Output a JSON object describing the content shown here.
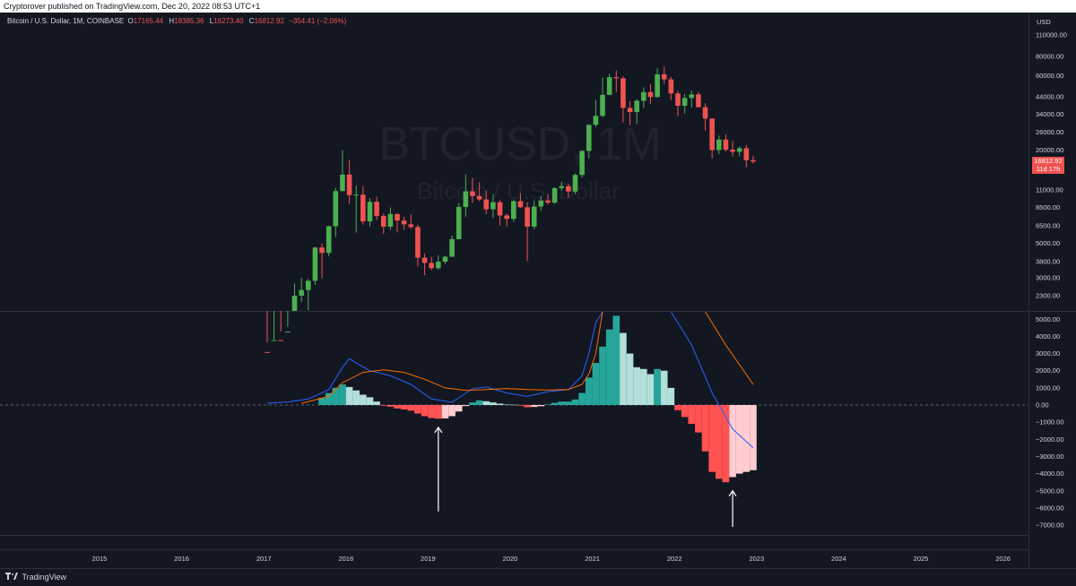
{
  "header": {
    "published": "Cryptorover published on TradingView.com, Dec 20, 2022 08:53 UTC+1"
  },
  "symbol": {
    "name": "Bitcoin / U.S. Dollar, 1M, COINBASE",
    "o_label": "O",
    "o_value": "17165.44",
    "h_label": "H",
    "h_value": "18385.36",
    "l_label": "L",
    "l_value": "16273.40",
    "c_label": "C",
    "c_value": "16812.92",
    "change": "−354.41 (−2.06%)"
  },
  "watermark": {
    "ticker": "BTCUSD, 1M",
    "description": "Bitcoin / U.S. Dollar"
  },
  "price_axis": {
    "currency": "USD",
    "labels": [
      "110000.00",
      "80000.00",
      "60000.00",
      "44000.00",
      "34000.00",
      "26000.00",
      "20000.00",
      "11000.00",
      "8500.00",
      "6500.00",
      "5000.00",
      "3800.00",
      "3000.00",
      "2300.00"
    ],
    "last_price": "16812.92",
    "countdown": "11d 17h"
  },
  "indicator_axis": {
    "labels": [
      "5000.00",
      "4000.00",
      "3000.00",
      "2000.00",
      "1000.00",
      "0.00",
      "−1000.00",
      "−2000.00",
      "−3000.00",
      "−4000.00",
      "−5000.00",
      "−6000.00",
      "−7000.00"
    ]
  },
  "time_axis": {
    "labels": [
      "2015",
      "2016",
      "2017",
      "2018",
      "2019",
      "2020",
      "2021",
      "2022",
      "2023",
      "2024",
      "2025",
      "2026"
    ]
  },
  "footer": {
    "brand": "TradingView"
  },
  "colors": {
    "background": "#131722",
    "up": "#26a69a",
    "down": "#ef5350",
    "up_candle": "#4caf50",
    "hist_up_strong": "#26a69a",
    "hist_up_weak": "#b2dfdb",
    "hist_down_strong": "#ff5252",
    "hist_down_weak": "#ffcdd2",
    "macd_line": "#2962ff",
    "signal_line": "#ff6d00"
  },
  "chart_data": [
    {
      "type": "candlestick",
      "timeframe": "1M",
      "yscale": "log",
      "candles": [
        {
          "t": "2017-01",
          "o": 998,
          "h": 1150,
          "l": 750,
          "c": 970
        },
        {
          "t": "2017-02",
          "o": 970,
          "h": 1200,
          "l": 920,
          "c": 1190
        },
        {
          "t": "2017-03",
          "o": 1190,
          "h": 1350,
          "l": 890,
          "c": 1080
        },
        {
          "t": "2017-04",
          "o": 1080,
          "h": 1450,
          "l": 1080,
          "c": 1350
        },
        {
          "t": "2017-05",
          "o": 1350,
          "h": 2760,
          "l": 1350,
          "c": 2300
        },
        {
          "t": "2017-06",
          "o": 2300,
          "h": 3000,
          "l": 2100,
          "c": 2500
        },
        {
          "t": "2017-07",
          "o": 2500,
          "h": 2950,
          "l": 1850,
          "c": 2870
        },
        {
          "t": "2017-08",
          "o": 2870,
          "h": 4750,
          "l": 2700,
          "c": 4700
        },
        {
          "t": "2017-09",
          "o": 4700,
          "h": 4980,
          "l": 2970,
          "c": 4340
        },
        {
          "t": "2017-10",
          "o": 4340,
          "h": 6470,
          "l": 4120,
          "c": 6450
        },
        {
          "t": "2017-11",
          "o": 6450,
          "h": 11400,
          "l": 5500,
          "c": 10850
        },
        {
          "t": "2017-12",
          "o": 10850,
          "h": 19890,
          "l": 10800,
          "c": 13860
        },
        {
          "t": "2018-01",
          "o": 13860,
          "h": 17250,
          "l": 9000,
          "c": 10230
        },
        {
          "t": "2018-02",
          "o": 10230,
          "h": 11790,
          "l": 5870,
          "c": 10300
        },
        {
          "t": "2018-03",
          "o": 10300,
          "h": 11700,
          "l": 6600,
          "c": 6930
        },
        {
          "t": "2018-04",
          "o": 6930,
          "h": 9770,
          "l": 6430,
          "c": 9250
        },
        {
          "t": "2018-05",
          "o": 9250,
          "h": 9990,
          "l": 7040,
          "c": 7500
        },
        {
          "t": "2018-06",
          "o": 7500,
          "h": 7780,
          "l": 5760,
          "c": 6400
        },
        {
          "t": "2018-07",
          "o": 6400,
          "h": 8500,
          "l": 6100,
          "c": 7730
        },
        {
          "t": "2018-08",
          "o": 7730,
          "h": 7760,
          "l": 5880,
          "c": 7010
        },
        {
          "t": "2018-09",
          "o": 7010,
          "h": 7420,
          "l": 6100,
          "c": 6630
        },
        {
          "t": "2018-10",
          "o": 6630,
          "h": 7680,
          "l": 6200,
          "c": 6370
        },
        {
          "t": "2018-11",
          "o": 6370,
          "h": 6600,
          "l": 3550,
          "c": 4040
        },
        {
          "t": "2018-12",
          "o": 4040,
          "h": 4300,
          "l": 3120,
          "c": 3740
        },
        {
          "t": "2019-01",
          "o": 3740,
          "h": 4100,
          "l": 3350,
          "c": 3460
        },
        {
          "t": "2019-02",
          "o": 3460,
          "h": 4200,
          "l": 3390,
          "c": 3810
        },
        {
          "t": "2019-03",
          "o": 3810,
          "h": 4150,
          "l": 3680,
          "c": 4100
        },
        {
          "t": "2019-04",
          "o": 4100,
          "h": 5600,
          "l": 4100,
          "c": 5320
        },
        {
          "t": "2019-05",
          "o": 5320,
          "h": 9080,
          "l": 5300,
          "c": 8570
        },
        {
          "t": "2019-06",
          "o": 8570,
          "h": 13880,
          "l": 7440,
          "c": 10820
        },
        {
          "t": "2019-07",
          "o": 10820,
          "h": 13200,
          "l": 9100,
          "c": 10090
        },
        {
          "t": "2019-08",
          "o": 10090,
          "h": 12340,
          "l": 9350,
          "c": 9590
        },
        {
          "t": "2019-09",
          "o": 9590,
          "h": 10950,
          "l": 7700,
          "c": 8290
        },
        {
          "t": "2019-10",
          "o": 8290,
          "h": 10370,
          "l": 7300,
          "c": 9200
        },
        {
          "t": "2019-11",
          "o": 9200,
          "h": 9500,
          "l": 6520,
          "c": 7560
        },
        {
          "t": "2019-12",
          "o": 7560,
          "h": 7750,
          "l": 6430,
          "c": 7190
        },
        {
          "t": "2020-01",
          "o": 7190,
          "h": 9560,
          "l": 6860,
          "c": 9350
        },
        {
          "t": "2020-02",
          "o": 9350,
          "h": 10500,
          "l": 8450,
          "c": 8540
        },
        {
          "t": "2020-03",
          "o": 8540,
          "h": 9190,
          "l": 3850,
          "c": 6410
        },
        {
          "t": "2020-04",
          "o": 6410,
          "h": 9460,
          "l": 6150,
          "c": 8630
        },
        {
          "t": "2020-05",
          "o": 8630,
          "h": 10070,
          "l": 8100,
          "c": 9450
        },
        {
          "t": "2020-06",
          "o": 9450,
          "h": 10400,
          "l": 8900,
          "c": 9140
        },
        {
          "t": "2020-07",
          "o": 9140,
          "h": 11450,
          "l": 8980,
          "c": 11350
        },
        {
          "t": "2020-08",
          "o": 11350,
          "h": 12480,
          "l": 10950,
          "c": 11660
        },
        {
          "t": "2020-09",
          "o": 11660,
          "h": 12100,
          "l": 9850,
          "c": 10780
        },
        {
          "t": "2020-10",
          "o": 10780,
          "h": 14100,
          "l": 10400,
          "c": 13800
        },
        {
          "t": "2020-11",
          "o": 13800,
          "h": 19900,
          "l": 13200,
          "c": 19700
        },
        {
          "t": "2020-12",
          "o": 19700,
          "h": 29300,
          "l": 17600,
          "c": 28990
        },
        {
          "t": "2021-01",
          "o": 28990,
          "h": 41950,
          "l": 28130,
          "c": 33140
        },
        {
          "t": "2021-02",
          "o": 33140,
          "h": 58350,
          "l": 32300,
          "c": 45240
        },
        {
          "t": "2021-03",
          "o": 45240,
          "h": 61790,
          "l": 45000,
          "c": 58800
        },
        {
          "t": "2021-04",
          "o": 58800,
          "h": 64850,
          "l": 47000,
          "c": 57800
        },
        {
          "t": "2021-05",
          "o": 57800,
          "h": 59600,
          "l": 30000,
          "c": 37300
        },
        {
          "t": "2021-06",
          "o": 37300,
          "h": 41300,
          "l": 28800,
          "c": 35040
        },
        {
          "t": "2021-07",
          "o": 35040,
          "h": 42400,
          "l": 29300,
          "c": 41460
        },
        {
          "t": "2021-08",
          "o": 41460,
          "h": 50500,
          "l": 37300,
          "c": 47100
        },
        {
          "t": "2021-09",
          "o": 47100,
          "h": 52900,
          "l": 39600,
          "c": 43800
        },
        {
          "t": "2021-10",
          "o": 43800,
          "h": 67000,
          "l": 43300,
          "c": 61300
        },
        {
          "t": "2021-11",
          "o": 61300,
          "h": 69000,
          "l": 53300,
          "c": 56950
        },
        {
          "t": "2021-12",
          "o": 56950,
          "h": 59100,
          "l": 42000,
          "c": 46200
        },
        {
          "t": "2022-01",
          "o": 46200,
          "h": 47900,
          "l": 33000,
          "c": 38480
        },
        {
          "t": "2022-02",
          "o": 38480,
          "h": 45800,
          "l": 34300,
          "c": 43180
        },
        {
          "t": "2022-03",
          "o": 43180,
          "h": 48200,
          "l": 37500,
          "c": 45530
        },
        {
          "t": "2022-04",
          "o": 45530,
          "h": 47400,
          "l": 37700,
          "c": 37650
        },
        {
          "t": "2022-05",
          "o": 37650,
          "h": 40000,
          "l": 26700,
          "c": 31800
        },
        {
          "t": "2022-06",
          "o": 31800,
          "h": 31900,
          "l": 17600,
          "c": 19940
        },
        {
          "t": "2022-07",
          "o": 19940,
          "h": 24700,
          "l": 18800,
          "c": 23300
        },
        {
          "t": "2022-08",
          "o": 23300,
          "h": 25200,
          "l": 19520,
          "c": 20050
        },
        {
          "t": "2022-09",
          "o": 20050,
          "h": 22800,
          "l": 18150,
          "c": 19430
        },
        {
          "t": "2022-10",
          "o": 19430,
          "h": 21100,
          "l": 18200,
          "c": 20490
        },
        {
          "t": "2022-11",
          "o": 20490,
          "h": 21470,
          "l": 15480,
          "c": 17165
        },
        {
          "t": "2022-12",
          "o": 17165.44,
          "h": 18385.36,
          "l": 16273.4,
          "c": 16812.92
        }
      ]
    },
    {
      "type": "macd",
      "ylim": [
        -7000,
        5000
      ],
      "histogram": [
        {
          "t": "2017-09",
          "v": 420
        },
        {
          "t": "2017-10",
          "v": 700
        },
        {
          "t": "2017-11",
          "v": 1000
        },
        {
          "t": "2017-12",
          "v": 1200
        },
        {
          "t": "2018-01",
          "v": 1050
        },
        {
          "t": "2018-02",
          "v": 850
        },
        {
          "t": "2018-03",
          "v": 600
        },
        {
          "t": "2018-04",
          "v": 450
        },
        {
          "t": "2018-05",
          "v": 200
        },
        {
          "t": "2018-06",
          "v": -40
        },
        {
          "t": "2018-07",
          "v": -100
        },
        {
          "t": "2018-08",
          "v": -200
        },
        {
          "t": "2018-09",
          "v": -260
        },
        {
          "t": "2018-10",
          "v": -330
        },
        {
          "t": "2018-11",
          "v": -500
        },
        {
          "t": "2018-12",
          "v": -650
        },
        {
          "t": "2019-01",
          "v": -760
        },
        {
          "t": "2019-02",
          "v": -800
        },
        {
          "t": "2019-03",
          "v": -780
        },
        {
          "t": "2019-04",
          "v": -650
        },
        {
          "t": "2019-05",
          "v": -380
        },
        {
          "t": "2019-06",
          "v": -60
        },
        {
          "t": "2019-07",
          "v": 150
        },
        {
          "t": "2019-08",
          "v": 270
        },
        {
          "t": "2019-09",
          "v": 220
        },
        {
          "t": "2019-10",
          "v": 150
        },
        {
          "t": "2019-11",
          "v": 80
        },
        {
          "t": "2019-12",
          "v": 30
        },
        {
          "t": "2020-01",
          "v": 20
        },
        {
          "t": "2020-02",
          "v": -40
        },
        {
          "t": "2020-03",
          "v": -130
        },
        {
          "t": "2020-04",
          "v": -110
        },
        {
          "t": "2020-05",
          "v": -70
        },
        {
          "t": "2020-06",
          "v": 30
        },
        {
          "t": "2020-07",
          "v": 130
        },
        {
          "t": "2020-08",
          "v": 200
        },
        {
          "t": "2020-09",
          "v": 200
        },
        {
          "t": "2020-10",
          "v": 320
        },
        {
          "t": "2020-11",
          "v": 700
        },
        {
          "t": "2020-12",
          "v": 1600
        },
        {
          "t": "2021-01",
          "v": 2450
        },
        {
          "t": "2021-02",
          "v": 3400
        },
        {
          "t": "2021-03",
          "v": 4400
        },
        {
          "t": "2021-04",
          "v": 5200
        },
        {
          "t": "2021-05",
          "v": 4200
        },
        {
          "t": "2021-06",
          "v": 3000
        },
        {
          "t": "2021-07",
          "v": 2200
        },
        {
          "t": "2021-08",
          "v": 2100
        },
        {
          "t": "2021-09",
          "v": 1800
        },
        {
          "t": "2021-10",
          "v": 2100
        },
        {
          "t": "2021-11",
          "v": 2000
        },
        {
          "t": "2021-12",
          "v": 1000
        },
        {
          "t": "2022-01",
          "v": -300
        },
        {
          "t": "2022-02",
          "v": -700
        },
        {
          "t": "2022-03",
          "v": -1100
        },
        {
          "t": "2022-04",
          "v": -1600
        },
        {
          "t": "2022-05",
          "v": -2700
        },
        {
          "t": "2022-06",
          "v": -3900
        },
        {
          "t": "2022-07",
          "v": -4300
        },
        {
          "t": "2022-08",
          "v": -4500
        },
        {
          "t": "2022-09",
          "v": -4200
        },
        {
          "t": "2022-10",
          "v": -4000
        },
        {
          "t": "2022-11",
          "v": -3900
        },
        {
          "t": "2022-12",
          "v": -3800
        }
      ],
      "macd_line": [
        {
          "t": "2017-01",
          "v": 100
        },
        {
          "t": "2017-04",
          "v": 180
        },
        {
          "t": "2017-07",
          "v": 350
        },
        {
          "t": "2017-10",
          "v": 900
        },
        {
          "t": "2017-12",
          "v": 2200
        },
        {
          "t": "2018-01",
          "v": 2700
        },
        {
          "t": "2018-02",
          "v": 2450
        },
        {
          "t": "2018-04",
          "v": 2000
        },
        {
          "t": "2018-07",
          "v": 1700
        },
        {
          "t": "2018-10",
          "v": 1200
        },
        {
          "t": "2019-01",
          "v": 350
        },
        {
          "t": "2019-04",
          "v": 160
        },
        {
          "t": "2019-07",
          "v": 950
        },
        {
          "t": "2019-09",
          "v": 1050
        },
        {
          "t": "2019-12",
          "v": 700
        },
        {
          "t": "2020-03",
          "v": 500
        },
        {
          "t": "2020-06",
          "v": 780
        },
        {
          "t": "2020-09",
          "v": 900
        },
        {
          "t": "2020-11",
          "v": 1700
        },
        {
          "t": "2020-12",
          "v": 3000
        },
        {
          "t": "2021-01",
          "v": 4800
        },
        {
          "t": "2021-02",
          "v": 6200
        }
      ],
      "macd_line_2022": [
        {
          "t": "2021-12",
          "v": 6000
        },
        {
          "t": "2022-03",
          "v": 3500
        },
        {
          "t": "2022-06",
          "v": 700
        },
        {
          "t": "2022-09",
          "v": -1400
        },
        {
          "t": "2022-12",
          "v": -2500
        }
      ],
      "signal_line": [
        {
          "t": "2017-06",
          "v": 100
        },
        {
          "t": "2017-10",
          "v": 500
        },
        {
          "t": "2017-12",
          "v": 1300
        },
        {
          "t": "2018-03",
          "v": 1900
        },
        {
          "t": "2018-06",
          "v": 2050
        },
        {
          "t": "2018-09",
          "v": 1900
        },
        {
          "t": "2018-12",
          "v": 1500
        },
        {
          "t": "2019-03",
          "v": 1000
        },
        {
          "t": "2019-06",
          "v": 850
        },
        {
          "t": "2019-09",
          "v": 900
        },
        {
          "t": "2019-12",
          "v": 960
        },
        {
          "t": "2020-03",
          "v": 900
        },
        {
          "t": "2020-06",
          "v": 870
        },
        {
          "t": "2020-09",
          "v": 900
        },
        {
          "t": "2020-11",
          "v": 1200
        },
        {
          "t": "2020-12",
          "v": 1800
        },
        {
          "t": "2021-01",
          "v": 3000
        },
        {
          "t": "2021-02",
          "v": 5500
        }
      ],
      "signal_line_2022": [
        {
          "t": "2022-05",
          "v": 6000
        },
        {
          "t": "2022-08",
          "v": 3500
        },
        {
          "t": "2022-12",
          "v": 1200
        }
      ],
      "annotations": [
        {
          "type": "arrow-up",
          "t": "2019-02",
          "from": -6200,
          "to": -1300
        },
        {
          "type": "arrow-up",
          "t": "2022-09",
          "from": -7100,
          "to": -5000
        }
      ]
    }
  ]
}
